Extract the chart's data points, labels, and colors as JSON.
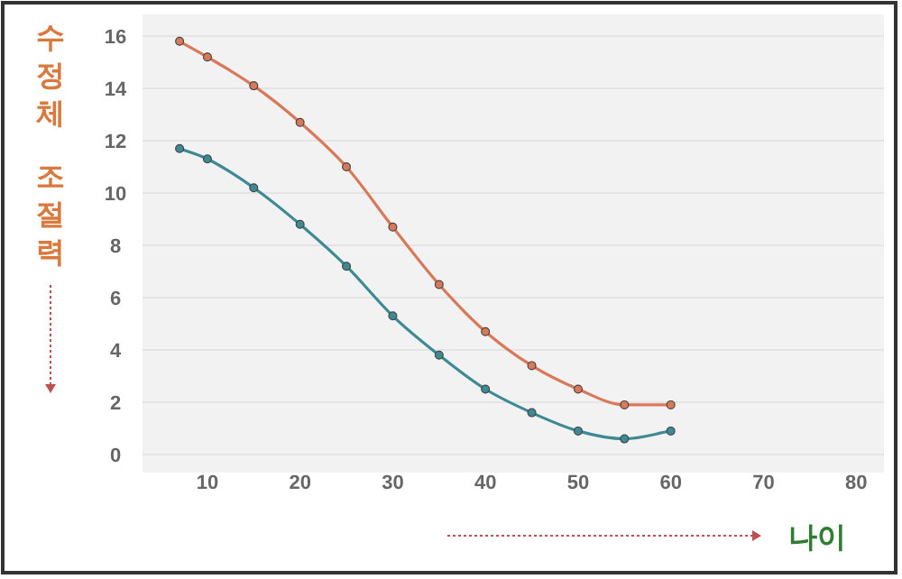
{
  "chart_data": {
    "type": "line",
    "ylabel": "수정체 조절력",
    "xlabel": "나이",
    "x": [
      7,
      10,
      15,
      20,
      25,
      30,
      35,
      40,
      45,
      50,
      55,
      60
    ],
    "series": [
      {
        "color": "#d9795a",
        "values": [
          15.8,
          15.2,
          14.1,
          12.7,
          11.0,
          8.7,
          6.5,
          4.7,
          3.4,
          2.5,
          1.9,
          1.9
        ]
      },
      {
        "color": "#3e8a94",
        "values": [
          11.7,
          11.3,
          10.2,
          8.8,
          7.2,
          5.3,
          3.8,
          2.5,
          1.6,
          0.9,
          0.6,
          0.9
        ]
      }
    ],
    "xlim": [
      3,
      83
    ],
    "ylim": [
      0,
      16
    ],
    "xticks": [
      10,
      20,
      30,
      40,
      50,
      60,
      70,
      80
    ],
    "yticks": [
      0,
      2,
      4,
      6,
      8,
      10,
      12,
      14,
      16
    ],
    "grid": "y",
    "marker": "circle",
    "line_style": "solid"
  }
}
